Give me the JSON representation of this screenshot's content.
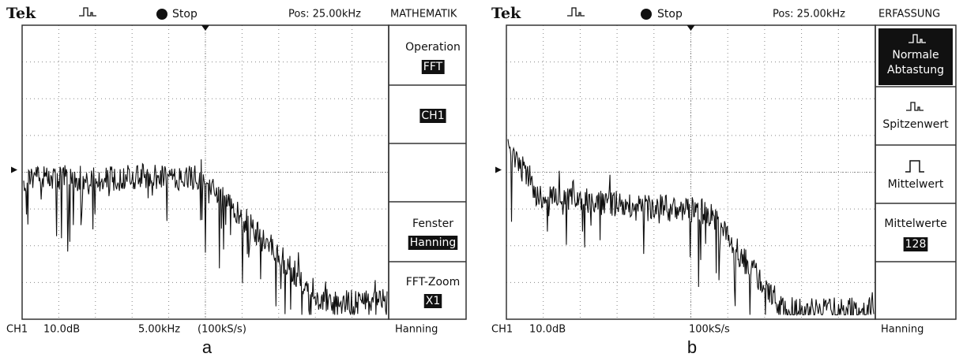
{
  "panels": [
    {
      "header": {
        "brand": "Tek",
        "status": "Stop",
        "position": "Pos: 25.00kHz",
        "menu_title": "MATHEMATIK"
      },
      "menu": {
        "operation_label": "Operation",
        "operation_value": "FFT",
        "source_value": "CH1",
        "window_label": "Fenster",
        "window_value": "Hanning",
        "zoom_label": "FFT-Zoom",
        "zoom_value": "X1"
      },
      "footer": {
        "channel": "CH1",
        "scale": "10.0dB",
        "frequency": "5.00kHz",
        "rate": "(100kS/s)",
        "window": "Hanning"
      },
      "caption": "a"
    },
    {
      "header": {
        "brand": "Tek",
        "status": "Stop",
        "position": "Pos: 25.00kHz",
        "menu_title": "ERFASSUNG"
      },
      "menu": {
        "mode_1": "Normale Abtastung",
        "mode_2": "Spitzenwert",
        "mode_3": "Mittelwert",
        "averages_label": "Mittelwerte",
        "averages_value": "128"
      },
      "footer": {
        "channel": "CH1",
        "scale": "10.0dB",
        "rate": "100kS/s",
        "window": "Hanning"
      },
      "caption": "b"
    }
  ]
}
